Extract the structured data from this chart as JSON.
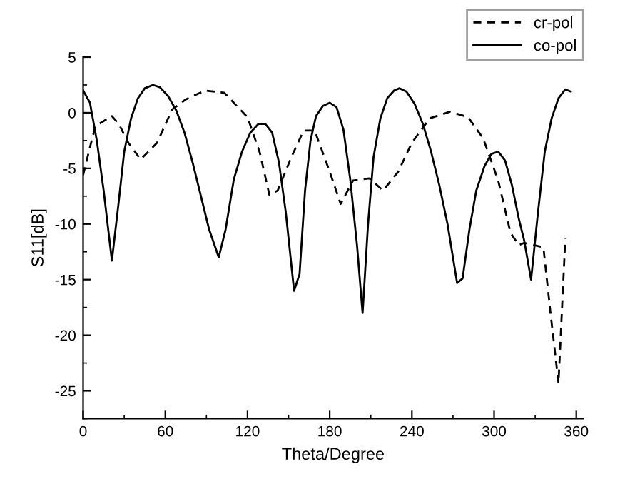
{
  "chart_data": {
    "type": "line",
    "xlabel": "Theta/Degree",
    "ylabel": "S11[dB]",
    "xlim": [
      0,
      365
    ],
    "xticks": [
      0,
      60,
      120,
      180,
      240,
      300,
      360
    ],
    "ylim": [
      -27.5,
      5
    ],
    "yticks": [
      5,
      0,
      -5,
      -10,
      -15,
      -20,
      -25
    ],
    "grid": false,
    "legend": "top right",
    "marker": "none",
    "series": [
      {
        "name": "cr-pol",
        "color": "#000000",
        "line_style": "dashed",
        "x": [
          0,
          5,
          9,
          21,
          26,
          33,
          42,
          54,
          65,
          75,
          89,
          103,
          120,
          129,
          136,
          142,
          152,
          161,
          169,
          180,
          188,
          197,
          209,
          219,
          230,
          240,
          253,
          268,
          281,
          292,
          303,
          312,
          318,
          322,
          336,
          341,
          347,
          352
        ],
        "values": [
          -5.6,
          -3.1,
          -1.2,
          -0.3,
          -1,
          -2.7,
          -4.2,
          -2.7,
          0.3,
          1.2,
          2.0,
          1.8,
          -0.4,
          -3.6,
          -7.4,
          -7,
          -4,
          -1.6,
          -1.6,
          -5.3,
          -8.2,
          -6.1,
          -5.9,
          -7,
          -5.3,
          -2.7,
          -0.5,
          0.1,
          -0.4,
          -2.3,
          -6.1,
          -10.8,
          -11.9,
          -11.7,
          -12.1,
          -17.8,
          -24.3,
          -11.3
        ]
      },
      {
        "name": "co-pol",
        "color": "#000000",
        "line_style": "solid",
        "x": [
          0,
          5,
          10,
          15,
          21,
          26,
          30,
          35,
          40,
          45,
          51,
          56,
          62,
          68,
          74,
          80,
          86,
          92,
          99,
          104,
          110,
          116,
          122,
          128,
          133,
          138,
          143,
          148,
          154,
          158,
          162,
          166,
          170,
          175,
          180,
          185,
          190,
          195,
          200,
          204,
          208,
          212,
          217,
          222,
          227,
          231,
          236,
          242,
          248,
          254,
          260,
          266,
          273,
          277,
          282,
          287,
          293,
          298,
          303,
          308,
          313,
          318,
          322,
          327,
          332,
          337,
          342,
          347,
          352,
          356
        ],
        "values": [
          2.0,
          0.9,
          -2.5,
          -7,
          -13.3,
          -8,
          -3.5,
          -0.5,
          1.3,
          2.2,
          2.5,
          2.3,
          1.5,
          0.2,
          -1.8,
          -4.5,
          -7.5,
          -10.5,
          -13,
          -10.5,
          -6,
          -3.5,
          -1.8,
          -1.0,
          -1.0,
          -1.8,
          -4.5,
          -9,
          -16,
          -14.5,
          -7,
          -2.5,
          -0.3,
          0.6,
          0.9,
          0.5,
          -1.5,
          -6,
          -12,
          -18,
          -10,
          -4,
          -0.5,
          1.3,
          2.0,
          2.2,
          1.9,
          0.8,
          -1.0,
          -3.5,
          -6.5,
          -10,
          -15.3,
          -14.9,
          -10.5,
          -7,
          -4.8,
          -3.7,
          -3.5,
          -4.3,
          -6.5,
          -9.5,
          -11.5,
          -15,
          -9,
          -3.5,
          -0.5,
          1.3,
          2.1,
          1.9
        ]
      }
    ]
  }
}
